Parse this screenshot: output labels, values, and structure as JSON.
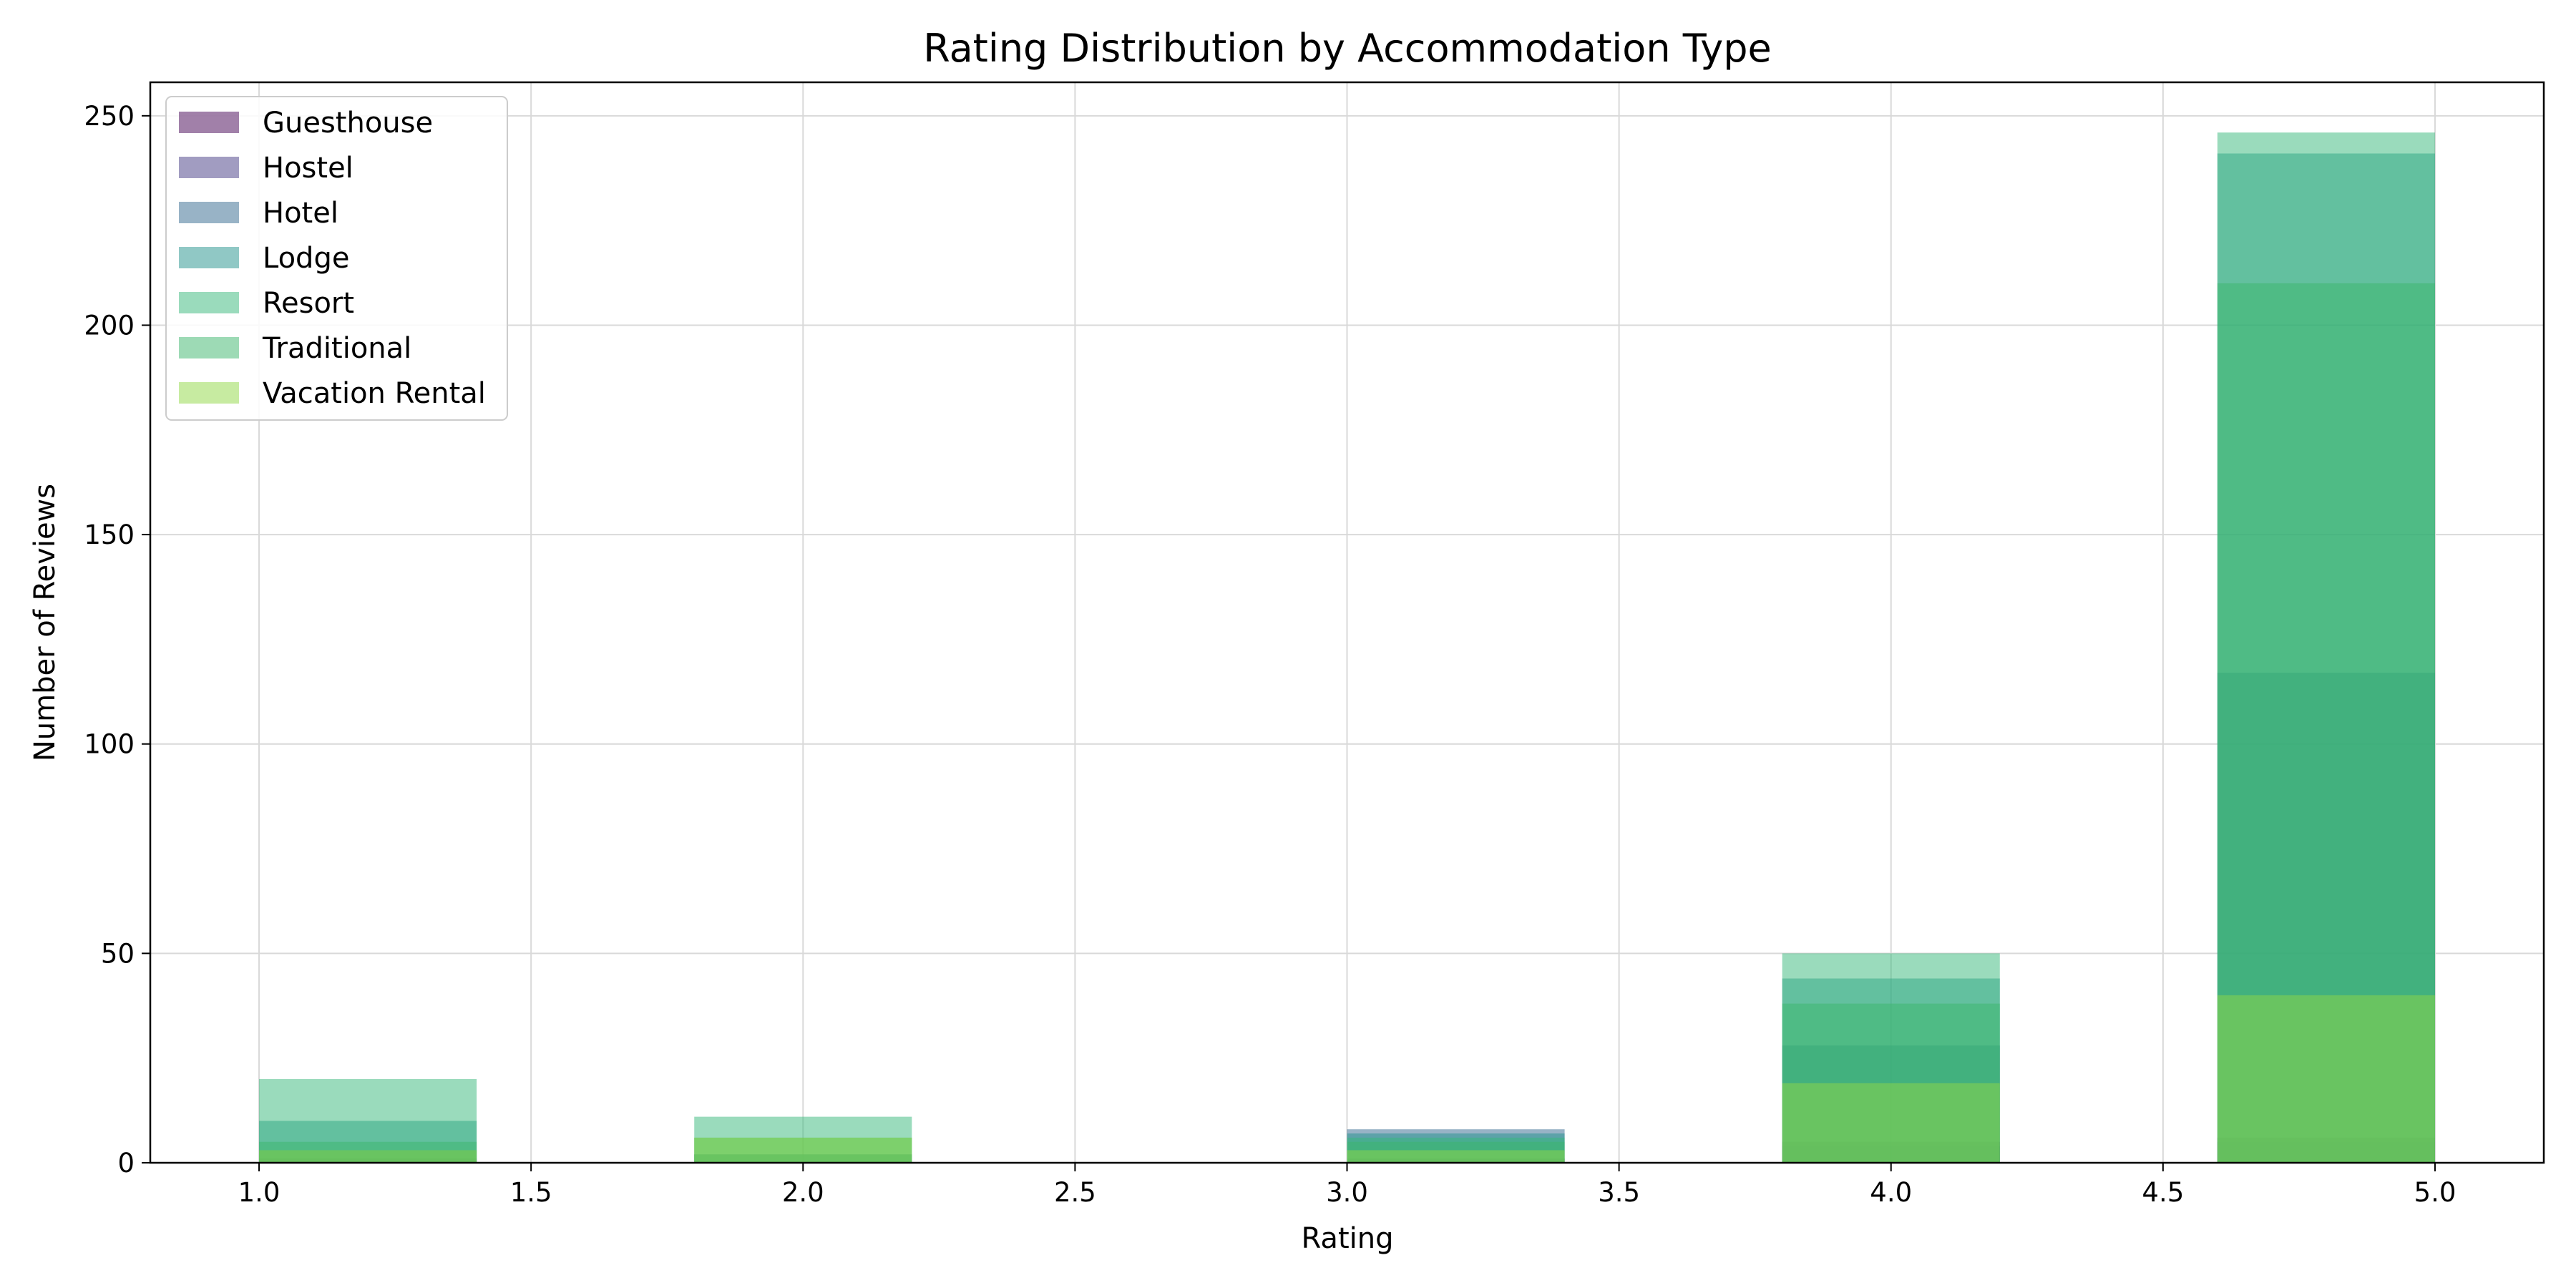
{
  "chart_data": {
    "type": "bar",
    "subtype": "overlapping-histogram",
    "title": "Rating Distribution by Accommodation Type",
    "xlabel": "Rating",
    "ylabel": "Number of Reviews",
    "xlim": [
      0.8,
      5.2
    ],
    "ylim": [
      0,
      258
    ],
    "xticks": [
      "1.0",
      "1.5",
      "2.0",
      "2.5",
      "3.0",
      "3.5",
      "4.0",
      "4.5",
      "5.0"
    ],
    "yticks": [
      "0",
      "50",
      "100",
      "150",
      "200",
      "250"
    ],
    "grid": true,
    "legend_position": "top-left",
    "bins": [
      [
        1.0,
        1.4
      ],
      [
        1.8,
        2.2
      ],
      [
        3.0,
        3.4
      ],
      [
        3.8,
        4.2
      ],
      [
        4.6,
        5.0
      ]
    ],
    "series": [
      {
        "name": "Guesthouse",
        "color": "#440154",
        "values": [
          1,
          0,
          1,
          5,
          6
        ]
      },
      {
        "name": "Hostel",
        "color": "#443983",
        "values": [
          0,
          0,
          1,
          4,
          5
        ]
      },
      {
        "name": "Hotel",
        "color": "#31688e",
        "values": [
          3,
          2,
          8,
          28,
          117
        ]
      },
      {
        "name": "Lodge",
        "color": "#21918c",
        "values": [
          10,
          2,
          7,
          44,
          241
        ]
      },
      {
        "name": "Resort",
        "color": "#35b779",
        "values": [
          20,
          11,
          6,
          50,
          246
        ]
      },
      {
        "name": "Traditional",
        "color": "#3bb56b",
        "values": [
          5,
          6,
          5,
          38,
          210
        ]
      },
      {
        "name": "Vacation Rental",
        "color": "#90d743",
        "values": [
          3,
          6,
          3,
          19,
          40
        ]
      }
    ],
    "bar_opacity": 0.5
  }
}
